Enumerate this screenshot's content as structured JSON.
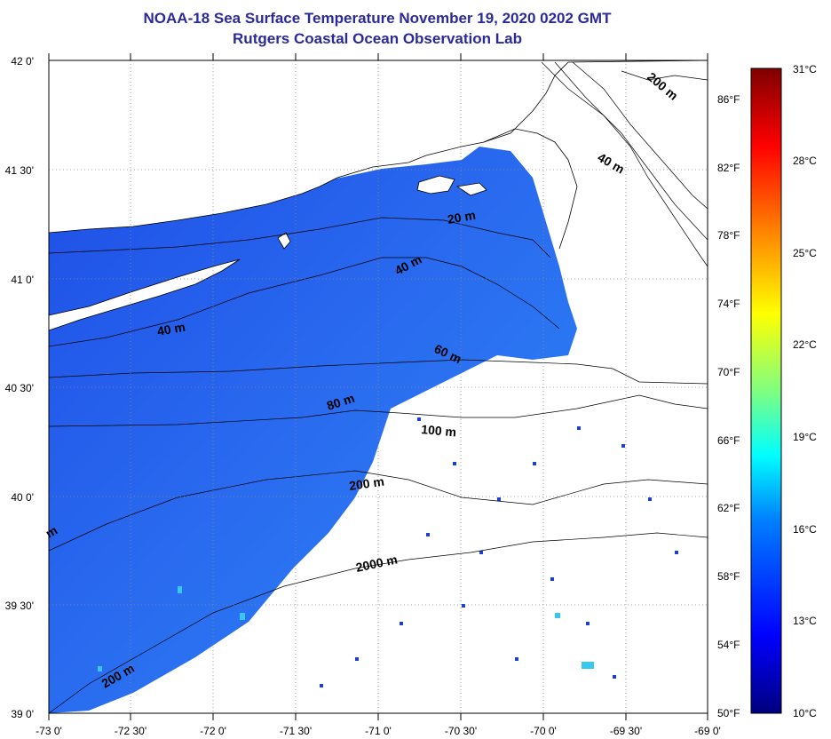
{
  "header": {
    "title": "NOAA-18 Sea Surface Temperature November 19, 2020 0202 GMT",
    "subtitle": "Rutgers Coastal Ocean Observation Lab"
  },
  "axes": {
    "lon_labels": [
      "-73 0'",
      "-72 30'",
      "-72 0'",
      "-71 30'",
      "-71 0'",
      "-70 30'",
      "-70 0'",
      "-69 30'",
      "-69 0'"
    ],
    "lat_labels": [
      "42 0'",
      "41 30'",
      "41 0'",
      "40 30'",
      "40 0'",
      "39 30'",
      "39 0'"
    ],
    "fahrenheit_labels": [
      "86°F",
      "82°F",
      "78°F",
      "74°F",
      "70°F",
      "66°F",
      "62°F",
      "58°F",
      "54°F",
      "50°F"
    ],
    "celsius_labels": [
      "31°C",
      "28°C",
      "25°C",
      "22°C",
      "19°C",
      "16°C",
      "13°C",
      "10°C"
    ]
  },
  "contour_labels": [
    "200 m",
    "40 m",
    "20 m",
    "40 m",
    "40 m",
    "60 m",
    "80 m",
    "100 m",
    "200 m",
    "2000 m",
    "m",
    "200 m"
  ],
  "colors": {
    "title": "#2a2a9a",
    "land": "#ffffff",
    "water_shelf": "#1a55e8",
    "water_warm": "#22c6ee"
  }
}
